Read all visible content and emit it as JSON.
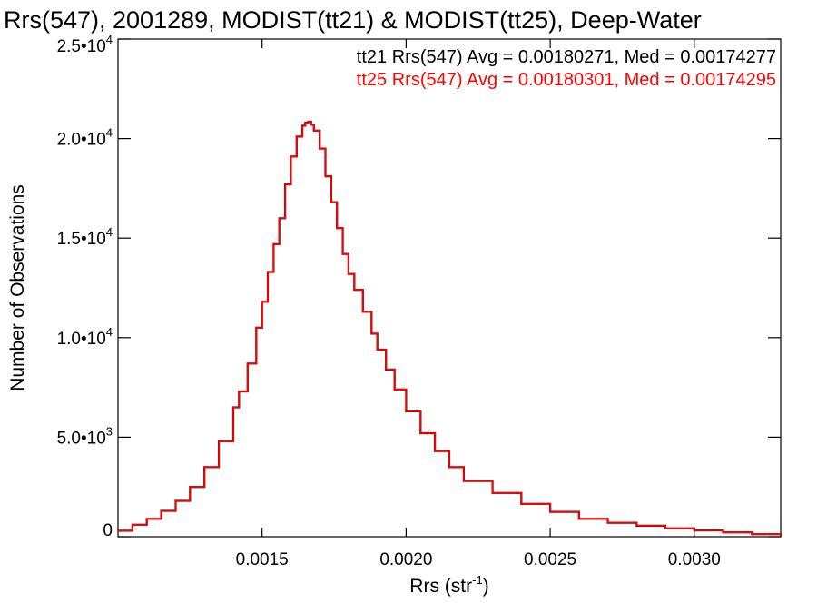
{
  "chart_data": {
    "type": "line",
    "title": "Rrs(547), 2001289, MODIST(tt21) & MODIST(tt25), Deep-Water",
    "xlabel": "Rrs (str",
    "xlabel_sup": "-1",
    "xlabel_suffix": ")",
    "ylabel": "Number of Observations",
    "xlim": [
      0.001,
      0.0033
    ],
    "ylim": [
      0,
      25000
    ],
    "x_ticks": [
      {
        "value": 0.0015,
        "label": "0.0015"
      },
      {
        "value": 0.002,
        "label": "0.0020"
      },
      {
        "value": 0.0025,
        "label": "0.0025"
      },
      {
        "value": 0.003,
        "label": "0.0030"
      }
    ],
    "y_ticks": [
      {
        "value": 0,
        "mant": "0",
        "exp": ""
      },
      {
        "value": 5000,
        "mant": "5.0•10",
        "exp": "3"
      },
      {
        "value": 10000,
        "mant": "1.0•10",
        "exp": "4"
      },
      {
        "value": 15000,
        "mant": "1.5•10",
        "exp": "4"
      },
      {
        "value": 20000,
        "mant": "2.0•10",
        "exp": "4"
      },
      {
        "value": 25000,
        "mant": "2.5•10",
        "exp": "4"
      }
    ],
    "legend_placement": "top-right",
    "legend": [
      {
        "text": "tt21 Rrs(547) Avg = 0.00180271, Med = 0.00174277",
        "color": "#000000"
      },
      {
        "text": "tt25 Rrs(547) Avg = 0.00180301, Med = 0.00174295",
        "color": "#ff0000"
      }
    ],
    "series": [
      {
        "color": "#000000",
        "x": [
          0.001,
          0.00105,
          0.0011,
          0.00115,
          0.0012,
          0.00125,
          0.0013,
          0.00135,
          0.0014,
          0.00142,
          0.00145,
          0.00148,
          0.0015,
          0.00152,
          0.00154,
          0.00156,
          0.00158,
          0.0016,
          0.00162,
          0.00164,
          0.00165,
          0.00166,
          0.00167,
          0.00168,
          0.0017,
          0.00172,
          0.00174,
          0.00176,
          0.00178,
          0.0018,
          0.00182,
          0.00185,
          0.00188,
          0.0019,
          0.00193,
          0.00196,
          0.002,
          0.00205,
          0.0021,
          0.00215,
          0.0022,
          0.0023,
          0.0024,
          0.0025,
          0.0026,
          0.0027,
          0.0028,
          0.0029,
          0.003,
          0.0031,
          0.0032,
          0.0033
        ],
        "y": [
          300,
          600,
          900,
          1300,
          1800,
          2500,
          3500,
          4800,
          6500,
          7300,
          8700,
          10500,
          11800,
          13300,
          14700,
          16000,
          17700,
          19100,
          20100,
          20650,
          20800,
          20850,
          20700,
          20400,
          19500,
          18100,
          16800,
          15500,
          14200,
          13200,
          12400,
          11300,
          10200,
          9400,
          8400,
          7400,
          6300,
          5200,
          4300,
          3500,
          2800,
          2200,
          1650,
          1250,
          900,
          700,
          550,
          420,
          320,
          220,
          130,
          60
        ]
      },
      {
        "color": "#ff0000",
        "x": [
          0.001,
          0.00105,
          0.0011,
          0.00115,
          0.0012,
          0.00125,
          0.0013,
          0.00135,
          0.0014,
          0.00142,
          0.00145,
          0.00148,
          0.0015,
          0.00152,
          0.00154,
          0.00156,
          0.00158,
          0.0016,
          0.00162,
          0.00164,
          0.00165,
          0.00166,
          0.00167,
          0.00168,
          0.0017,
          0.00172,
          0.00174,
          0.00176,
          0.00178,
          0.0018,
          0.00182,
          0.00185,
          0.00188,
          0.0019,
          0.00193,
          0.00196,
          0.002,
          0.00205,
          0.0021,
          0.00215,
          0.0022,
          0.0023,
          0.0024,
          0.0025,
          0.0026,
          0.0027,
          0.0028,
          0.0029,
          0.003,
          0.0031,
          0.0032,
          0.0033
        ],
        "y": [
          300,
          600,
          900,
          1300,
          1800,
          2500,
          3500,
          4800,
          6500,
          7300,
          8700,
          10500,
          11800,
          13300,
          14700,
          16000,
          17700,
          19100,
          20100,
          20650,
          20800,
          20850,
          20700,
          20400,
          19500,
          18100,
          16800,
          15500,
          14200,
          13200,
          12400,
          11300,
          10200,
          9400,
          8400,
          7400,
          6300,
          5200,
          4300,
          3500,
          2800,
          2200,
          1650,
          1250,
          900,
          700,
          550,
          420,
          320,
          220,
          130,
          60
        ]
      }
    ]
  }
}
